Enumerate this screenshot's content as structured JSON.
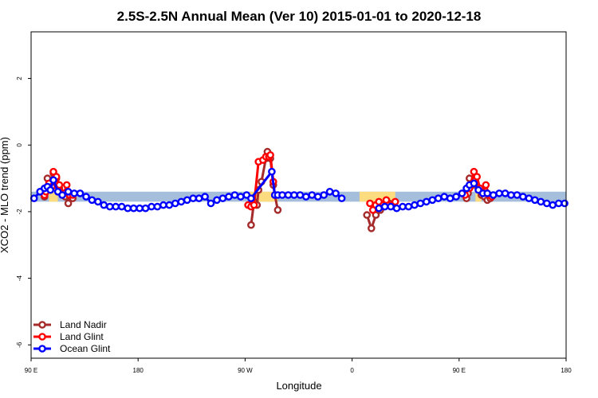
{
  "chart_data": {
    "type": "line",
    "title": "2.5S-2.5N Annual Mean (Ver 10)   2015-01-01 to 2020-12-18",
    "xlabel": "Longitude",
    "ylabel": "XCO2 - MLO trend (ppm)",
    "xlim": [
      90,
      450
    ],
    "ylim": [
      -6.4,
      3.4
    ],
    "x_ticks": [
      {
        "value": 90,
        "label": "90 E"
      },
      {
        "value": 162,
        "label": "180"
      },
      {
        "value": 234,
        "label": "90 W"
      },
      {
        "value": 306,
        "label": "0"
      },
      {
        "value": 378,
        "label": "90 E"
      },
      {
        "value": 450,
        "label": "180"
      }
    ],
    "y_ticks": [
      {
        "value": 2,
        "label": "2"
      },
      {
        "value": 0,
        "label": "0"
      },
      {
        "value": -2,
        "label": "-2"
      },
      {
        "value": -4,
        "label": "-4"
      },
      {
        "value": -6,
        "label": "-6"
      }
    ],
    "legend_position": "bottom-left",
    "series": [
      {
        "name": "Land Nadir",
        "color": "#a52a2a",
        "segments": [
          [
            [
              99,
              -1.55
            ],
            [
              100,
              -1.35
            ],
            [
              101,
              -1.0
            ],
            [
              102,
              -1.3
            ],
            [
              105,
              -0.85
            ],
            [
              107,
              -1.0
            ],
            [
              109,
              -1.3
            ],
            [
              111,
              -1.5
            ],
            [
              113,
              -1.55
            ],
            [
              115,
              -1.75
            ],
            [
              116,
              -1.55
            ],
            [
              118,
              -1.6
            ]
          ],
          [
            [
              238,
              -2.4
            ],
            [
              240,
              -1.7
            ],
            [
              242,
              -1.8
            ],
            [
              243,
              -1.35
            ],
            [
              245,
              -1.1
            ],
            [
              248,
              -0.4
            ],
            [
              249,
              -0.2
            ],
            [
              251,
              -0.4
            ],
            [
              253,
              -1.2
            ],
            [
              254,
              -1.5
            ],
            [
              256,
              -1.95
            ]
          ],
          [
            [
              316,
              -2.1
            ],
            [
              319,
              -2.5
            ],
            [
              322,
              -2.1
            ],
            [
              325,
              -1.95
            ],
            [
              327,
              -1.85
            ],
            [
              329,
              -1.7
            ],
            [
              331,
              -1.75
            ]
          ],
          [
            [
              383,
              -1.6
            ],
            [
              384,
              -1.45
            ],
            [
              385,
              -1.0
            ],
            [
              387,
              -1.2
            ],
            [
              389,
              -1.0
            ],
            [
              391,
              -1.3
            ],
            [
              393,
              -1.5
            ],
            [
              395,
              -1.55
            ],
            [
              397,
              -1.65
            ],
            [
              399,
              -1.6
            ]
          ]
        ]
      },
      {
        "name": "Land Glint",
        "color": "#ff0000",
        "segments": [
          [
            [
              99,
              -1.5
            ],
            [
              100,
              -1.4
            ],
            [
              102,
              -1.15
            ],
            [
              104,
              -1.25
            ],
            [
              105,
              -0.8
            ],
            [
              107,
              -0.95
            ],
            [
              109,
              -1.2
            ],
            [
              112,
              -1.45
            ],
            [
              114,
              -1.2
            ],
            [
              116,
              -1.5
            ],
            [
              118,
              -1.5
            ]
          ],
          [
            [
              236,
              -1.8
            ],
            [
              238,
              -1.85
            ],
            [
              240,
              -1.8
            ],
            [
              243,
              -0.5
            ],
            [
              246,
              -0.45
            ],
            [
              248,
              -0.35
            ],
            [
              250,
              -0.35
            ],
            [
              251,
              -0.3
            ],
            [
              253,
              -1.1
            ],
            [
              254,
              -1.5
            ]
          ],
          [
            [
              318,
              -1.75
            ],
            [
              320,
              -1.95
            ],
            [
              322,
              -1.8
            ],
            [
              324,
              -1.7
            ],
            [
              327,
              -1.8
            ],
            [
              329,
              -1.65
            ],
            [
              333,
              -1.8
            ],
            [
              335,
              -1.7
            ]
          ],
          [
            [
              382,
              -1.5
            ],
            [
              385,
              -1.3
            ],
            [
              388,
              -0.8
            ],
            [
              390,
              -0.95
            ],
            [
              392,
              -1.3
            ],
            [
              394,
              -1.45
            ],
            [
              396,
              -1.2
            ],
            [
              398,
              -1.5
            ],
            [
              400,
              -1.55
            ]
          ]
        ]
      },
      {
        "name": "Ocean Glint",
        "color": "#0000ff",
        "segments": [
          [
            [
              92,
              -1.6
            ],
            [
              96,
              -1.4
            ],
            [
              99,
              -1.3
            ],
            [
              101,
              -1.25
            ],
            [
              103,
              -1.35
            ],
            [
              105,
              -1.05
            ],
            [
              108,
              -1.4
            ],
            [
              111,
              -1.5
            ],
            [
              115,
              -1.4
            ],
            [
              119,
              -1.45
            ],
            [
              123,
              -1.45
            ],
            [
              127,
              -1.55
            ],
            [
              131,
              -1.65
            ],
            [
              135,
              -1.7
            ],
            [
              139,
              -1.8
            ],
            [
              143,
              -1.85
            ],
            [
              147,
              -1.85
            ],
            [
              151,
              -1.85
            ],
            [
              155,
              -1.9
            ],
            [
              159,
              -1.9
            ],
            [
              163,
              -1.9
            ],
            [
              167,
              -1.9
            ],
            [
              171,
              -1.85
            ],
            [
              175,
              -1.85
            ],
            [
              179,
              -1.8
            ],
            [
              183,
              -1.8
            ],
            [
              187,
              -1.75
            ],
            [
              191,
              -1.7
            ],
            [
              195,
              -1.65
            ],
            [
              199,
              -1.6
            ],
            [
              203,
              -1.6
            ],
            [
              207,
              -1.55
            ],
            [
              211,
              -1.75
            ],
            [
              215,
              -1.65
            ],
            [
              219,
              -1.6
            ],
            [
              223,
              -1.55
            ],
            [
              227,
              -1.5
            ],
            [
              231,
              -1.55
            ],
            [
              235,
              -1.5
            ],
            [
              238,
              -1.6
            ],
            [
              252,
              -0.8
            ],
            [
              254,
              -1.5
            ],
            [
              256,
              -1.5
            ],
            [
              259,
              -1.5
            ],
            [
              263,
              -1.5
            ],
            [
              267,
              -1.5
            ],
            [
              271,
              -1.5
            ],
            [
              275,
              -1.55
            ],
            [
              279,
              -1.5
            ],
            [
              283,
              -1.55
            ],
            [
              287,
              -1.5
            ],
            [
              291,
              -1.4
            ],
            [
              295,
              -1.45
            ],
            [
              299,
              -1.6
            ]
          ],
          [
            [
              324,
              -1.9
            ],
            [
              328,
              -1.85
            ],
            [
              332,
              -1.85
            ],
            [
              336,
              -1.9
            ],
            [
              340,
              -1.85
            ],
            [
              344,
              -1.85
            ],
            [
              348,
              -1.8
            ],
            [
              352,
              -1.75
            ],
            [
              356,
              -1.7
            ],
            [
              360,
              -1.65
            ],
            [
              364,
              -1.6
            ],
            [
              368,
              -1.55
            ],
            [
              372,
              -1.6
            ],
            [
              376,
              -1.55
            ],
            [
              380,
              -1.45
            ],
            [
              383,
              -1.3
            ],
            [
              385,
              -1.2
            ],
            [
              388,
              -1.15
            ],
            [
              391,
              -1.35
            ],
            [
              394,
              -1.45
            ],
            [
              397,
              -1.45
            ],
            [
              401,
              -1.5
            ],
            [
              405,
              -1.45
            ],
            [
              409,
              -1.45
            ],
            [
              413,
              -1.5
            ],
            [
              417,
              -1.5
            ],
            [
              421,
              -1.55
            ],
            [
              425,
              -1.6
            ],
            [
              429,
              -1.65
            ],
            [
              433,
              -1.7
            ],
            [
              437,
              -1.75
            ],
            [
              441,
              -1.8
            ],
            [
              445,
              -1.75
            ],
            [
              449,
              -1.75
            ]
          ]
        ]
      }
    ],
    "bands": {
      "y_range": [
        -1.7,
        -1.4
      ],
      "blue_color": "#a4bedb",
      "orange_color": "#fddc80",
      "orange_spans": [
        [
          102,
          108
        ],
        [
          237,
          256
        ],
        [
          311,
          335
        ],
        [
          389,
          393
        ]
      ]
    }
  }
}
